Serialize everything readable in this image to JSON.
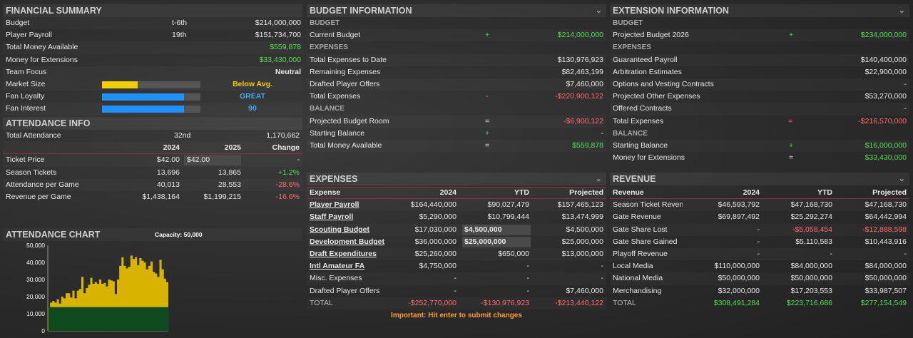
{
  "financial": {
    "title": "FINANCIAL SUMMARY",
    "rows": [
      {
        "label": "Budget",
        "rank": "t-6th",
        "value": "$214,000,000"
      },
      {
        "label": "Player Payroll",
        "rank": "19th",
        "value": "$151,734,700"
      },
      {
        "label": "Total Money Available",
        "rank": "",
        "value": "$559,878"
      },
      {
        "label": "Money for Extensions",
        "rank": "",
        "value": "$33,430,000"
      },
      {
        "label": "Team Focus",
        "rank": "",
        "value": "Neutral"
      }
    ],
    "meters": [
      {
        "label": "Market Size",
        "level": 0.36,
        "color": "#f0d000",
        "text": "Below Avg."
      },
      {
        "label": "Fan Loyalty",
        "level": 0.83,
        "color": "#1e90ff",
        "text": "GREAT"
      },
      {
        "label": "Fan Interest",
        "level": 0.83,
        "color": "#1e90ff",
        "text": "90"
      }
    ]
  },
  "attendance": {
    "title": "ATTENDANCE INFO",
    "total_label": "Total Attendance",
    "total_rank": "32nd",
    "total_value": "1,170,662",
    "col_2024": "2024",
    "col_2025": "2025",
    "col_change": "Change",
    "rows": [
      {
        "label": "Ticket Price",
        "v2024": "$42.00",
        "v2025": "$42.00",
        "change": "-"
      },
      {
        "label": "Season Tickets",
        "v2024": "13,696",
        "v2025": "13,865",
        "change": "+1.2%"
      },
      {
        "label": "Attendance per Game",
        "v2024": "40,013",
        "v2025": "28,553",
        "change": "-28.6%"
      },
      {
        "label": "Revenue per Game",
        "v2024": "$1,438,164",
        "v2025": "$1,199,215",
        "change": "-16.6%"
      }
    ]
  },
  "attendance_chart": {
    "title": "ATTENDANCE CHART",
    "capacity": "Capacity: 50,000"
  },
  "chart_data": {
    "type": "area",
    "title": "",
    "ylim": [
      0,
      50000
    ],
    "yticks": [
      "50,000",
      "40,000",
      "30,000",
      "20,000",
      "10,000",
      "0"
    ],
    "capacity": 50000,
    "season_tickets": 13865,
    "values": [
      13500,
      16500,
      17500,
      16500,
      18500,
      16000,
      20000,
      19000,
      22000,
      22000,
      19500,
      23500,
      19000,
      23500,
      24500,
      31500,
      22000,
      25000,
      27000,
      31000,
      27500,
      28500,
      27500,
      30000,
      27500,
      28000,
      26000,
      30000,
      29500,
      29000,
      21500,
      30000,
      38000,
      43000,
      38000,
      36500,
      37500,
      44000,
      42000,
      43000,
      38500,
      42500,
      41000,
      40000,
      36000,
      38000,
      40500,
      34500,
      33500,
      31500,
      41500,
      36000,
      30500,
      28500
    ]
  },
  "budget": {
    "title": "BUDGET INFORMATION",
    "budget_sub": "BUDGET",
    "current_label": "Current Budget",
    "current_op": "+",
    "current_value": "$214,000,000",
    "expenses_sub": "EXPENSES",
    "expense_rows": [
      {
        "label": "Total Expenses to Date",
        "value": "$130,976,923"
      },
      {
        "label": "Remaining Expenses",
        "value": "$82,463,199"
      },
      {
        "label": "Drafted Player Offers",
        "value": "$7,460,000"
      }
    ],
    "total_exp_label": "Total Expenses",
    "total_exp_op": "-",
    "total_exp_value": "-$220,900,122",
    "balance_sub": "BALANCE",
    "balance_rows": [
      {
        "label": "Projected Budget Room",
        "op": "=",
        "value": "-$6,900,122",
        "cls": "red"
      },
      {
        "label": "Starting Balance",
        "op": "+",
        "value": "-",
        "cls": ""
      },
      {
        "label": "Total Money Available",
        "op": "=",
        "value": "$559,878",
        "cls": "green"
      }
    ]
  },
  "extension": {
    "title": "EXTENSION INFORMATION",
    "budget_sub": "BUDGET",
    "proj_label": "Projected Budget 2026",
    "proj_op": "+",
    "proj_value": "$234,000,000",
    "expenses_sub": "EXPENSES",
    "expense_rows": [
      {
        "label": "Guaranteed Payroll",
        "value": "$140,400,000"
      },
      {
        "label": "Arbitration Estimates",
        "value": "$22,900,000"
      },
      {
        "label": "Options and Vesting Contracts",
        "value": "-"
      },
      {
        "label": "Projected Other Expenses",
        "value": "$53,270,000"
      },
      {
        "label": "Offered Contracts",
        "value": "-"
      }
    ],
    "total_exp_label": "Total Expenses",
    "total_exp_op": "=",
    "total_exp_value": "-$216,570,000",
    "balance_sub": "BALANCE",
    "balance_rows": [
      {
        "label": "Starting Balance",
        "op": "+",
        "value": "$16,000,000"
      },
      {
        "label": "Money for Extensions",
        "op": "=",
        "value": "$33,430,000"
      }
    ]
  },
  "expenses": {
    "title": "EXPENSES",
    "headers": [
      "Expense",
      "2024",
      "YTD",
      "Projected"
    ],
    "rows": [
      {
        "label": "Player Payroll",
        "link": true,
        "v2024": "$164,440,000",
        "ytd": "$90,027,479",
        "proj": "$157,465,123",
        "input": false
      },
      {
        "label": "Staff Payroll",
        "link": true,
        "v2024": "$5,290,000",
        "ytd": "$10,799,444",
        "proj": "$13,474,999",
        "input": false
      },
      {
        "label": "Scouting Budget",
        "link": true,
        "v2024": "$17,030,000",
        "ytd": "$4,500,000",
        "proj": "$4,500,000",
        "input": true
      },
      {
        "label": "Development Budget",
        "link": true,
        "v2024": "$36,000,000",
        "ytd": "$25,000,000",
        "proj": "$25,000,000",
        "input": true
      },
      {
        "label": "Draft Expenditures",
        "link": true,
        "v2024": "$25,260,000",
        "ytd": "$650,000",
        "proj": "$13,000,000",
        "input": false
      },
      {
        "label": "Intl Amateur FA",
        "link": true,
        "v2024": "$4,750,000",
        "ytd": "-",
        "proj": "-",
        "input": false
      },
      {
        "label": "Misc. Expenses",
        "link": false,
        "v2024": "-",
        "ytd": "-",
        "proj": "-",
        "input": false
      },
      {
        "label": "Drafted Player Offers",
        "link": false,
        "v2024": "-",
        "ytd": "-",
        "proj": "$7,460,000",
        "input": false
      }
    ],
    "total": {
      "label": "TOTAL",
      "v2024": "-$252,770,000",
      "ytd": "-$130,976,923",
      "proj": "-$213,440,122"
    },
    "note": "Important: Hit enter to submit changes"
  },
  "revenue": {
    "title": "REVENUE",
    "headers": [
      "Revenue",
      "2024",
      "YTD",
      "Projected"
    ],
    "rows": [
      {
        "label": "Season Ticket Reven",
        "v2024": "$46,593,792",
        "ytd": "$47,168,730",
        "proj": "$47,168,730",
        "ytdcls": "",
        "projcls": ""
      },
      {
        "label": "Gate Revenue",
        "v2024": "$69,897,492",
        "ytd": "$25,292,274",
        "proj": "$64,442,994",
        "ytdcls": "",
        "projcls": ""
      },
      {
        "label": "Gate Share Lost",
        "v2024": "-",
        "ytd": "-$5,058,454",
        "proj": "-$12,888,598",
        "ytdcls": "red",
        "projcls": "red"
      },
      {
        "label": "Gate Share Gained",
        "v2024": "-",
        "ytd": "$5,110,583",
        "proj": "$10,443,916",
        "ytdcls": "",
        "projcls": ""
      },
      {
        "label": "Playoff Revenue",
        "v2024": "-",
        "ytd": "-",
        "proj": "-",
        "ytdcls": "",
        "projcls": ""
      },
      {
        "label": "Local Media",
        "v2024": "$110,000,000",
        "ytd": "$84,000,000",
        "proj": "$84,000,000",
        "ytdcls": "",
        "projcls": ""
      },
      {
        "label": "National Media",
        "v2024": "$50,000,000",
        "ytd": "$50,000,000",
        "proj": "$50,000,000",
        "ytdcls": "",
        "projcls": ""
      },
      {
        "label": "Merchandising",
        "v2024": "$32,000,000",
        "ytd": "$17,203,553",
        "proj": "$33,987,507",
        "ytdcls": "",
        "projcls": ""
      }
    ],
    "total": {
      "label": "TOTAL",
      "v2024": "$308,491,284",
      "ytd": "$223,716,686",
      "proj": "$277,154,549"
    }
  },
  "icons": {
    "chevron": "chevron-down-icon"
  }
}
